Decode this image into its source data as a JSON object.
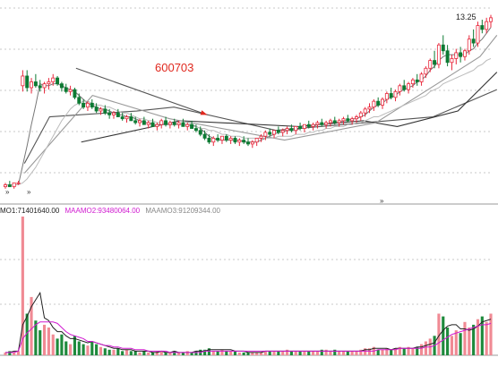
{
  "chart_data": {
    "type": "candlestick",
    "symbol": "600703",
    "max_price_label": "13.25",
    "price_markers": [
      "»",
      "»"
    ],
    "volume_legend": [
      {
        "text": "MO1:71401640.00",
        "color": "#222222"
      },
      {
        "text": "MAAMO2:93480064.00",
        "color": "#d01ad0"
      },
      {
        "text": "MAAMO3:91209344.00",
        "color": "#888888"
      }
    ],
    "ylim": [
      4.2,
      13.6
    ],
    "candles": [
      [
        4.4,
        4.6,
        4.3,
        4.5
      ],
      [
        4.5,
        4.7,
        4.4,
        4.4
      ],
      [
        4.4,
        4.6,
        4.3,
        4.6
      ],
      [
        4.6,
        4.7,
        4.5,
        4.6
      ],
      [
        9.6,
        10.4,
        9.3,
        10.1
      ],
      [
        10.1,
        10.4,
        9.3,
        9.5
      ],
      [
        9.5,
        10.0,
        9.2,
        9.8
      ],
      [
        9.8,
        10.2,
        9.5,
        9.6
      ],
      [
        9.6,
        9.9,
        9.3,
        9.5
      ],
      [
        9.5,
        9.8,
        9.2,
        9.7
      ],
      [
        9.7,
        10.0,
        9.4,
        9.8
      ],
      [
        9.8,
        10.2,
        9.6,
        10.0
      ],
      [
        10.0,
        10.1,
        9.6,
        9.7
      ],
      [
        9.7,
        9.8,
        9.3,
        9.5
      ],
      [
        9.5,
        9.7,
        9.2,
        9.3
      ],
      [
        9.3,
        9.6,
        9.1,
        9.4
      ],
      [
        9.4,
        9.5,
        8.9,
        9.0
      ],
      [
        9.0,
        9.2,
        8.6,
        8.7
      ],
      [
        8.7,
        8.9,
        8.4,
        8.5
      ],
      [
        8.5,
        8.8,
        8.3,
        8.7
      ],
      [
        8.7,
        8.9,
        8.4,
        8.5
      ],
      [
        8.5,
        8.7,
        8.2,
        8.3
      ],
      [
        8.3,
        8.5,
        8.1,
        8.4
      ],
      [
        8.4,
        8.6,
        8.1,
        8.2
      ],
      [
        8.2,
        8.4,
        7.9,
        8.1
      ],
      [
        8.1,
        8.3,
        7.9,
        8.2
      ],
      [
        8.2,
        8.4,
        8.0,
        8.0
      ],
      [
        8.0,
        8.2,
        7.8,
        7.9
      ],
      [
        7.9,
        8.1,
        7.7,
        8.0
      ],
      [
        8.0,
        8.2,
        7.8,
        7.8
      ],
      [
        7.8,
        8.0,
        7.6,
        7.7
      ],
      [
        7.7,
        7.9,
        7.5,
        7.8
      ],
      [
        7.8,
        8.0,
        7.6,
        7.6
      ],
      [
        7.6,
        7.8,
        7.4,
        7.7
      ],
      [
        7.7,
        7.9,
        7.5,
        7.5
      ],
      [
        7.5,
        7.7,
        7.3,
        7.6
      ],
      [
        7.6,
        7.9,
        7.4,
        7.8
      ],
      [
        7.8,
        8.0,
        7.5,
        7.6
      ],
      [
        7.6,
        7.8,
        7.4,
        7.7
      ],
      [
        7.7,
        7.9,
        7.5,
        7.6
      ],
      [
        7.6,
        7.8,
        7.4,
        7.7
      ],
      [
        7.7,
        7.9,
        7.5,
        7.5
      ],
      [
        7.5,
        7.7,
        7.3,
        7.6
      ],
      [
        7.6,
        7.8,
        7.4,
        7.4
      ],
      [
        7.4,
        7.6,
        7.2,
        7.3
      ],
      [
        7.3,
        7.5,
        7.0,
        7.1
      ],
      [
        7.1,
        7.3,
        6.8,
        6.9
      ],
      [
        6.9,
        7.1,
        6.6,
        6.7
      ],
      [
        6.7,
        7.0,
        6.5,
        6.9
      ],
      [
        6.9,
        7.1,
        6.7,
        6.8
      ],
      [
        6.8,
        7.0,
        6.6,
        7.0
      ],
      [
        7.0,
        7.1,
        6.7,
        6.8
      ],
      [
        6.8,
        7.0,
        6.6,
        6.9
      ],
      [
        6.9,
        7.0,
        6.6,
        6.7
      ],
      [
        6.7,
        6.9,
        6.5,
        6.8
      ],
      [
        6.8,
        7.0,
        6.6,
        6.7
      ],
      [
        6.7,
        6.9,
        6.5,
        6.6
      ],
      [
        6.6,
        6.8,
        6.4,
        6.7
      ],
      [
        6.7,
        6.9,
        6.5,
        6.9
      ],
      [
        6.9,
        7.1,
        6.7,
        7.0
      ],
      [
        7.0,
        7.3,
        6.8,
        7.2
      ],
      [
        7.2,
        7.4,
        7.0,
        7.1
      ],
      [
        7.1,
        7.3,
        6.9,
        7.3
      ],
      [
        7.3,
        7.5,
        7.1,
        7.2
      ],
      [
        7.2,
        7.4,
        7.0,
        7.3
      ],
      [
        7.3,
        7.5,
        7.1,
        7.4
      ],
      [
        7.4,
        7.6,
        7.2,
        7.3
      ],
      [
        7.3,
        7.5,
        7.1,
        7.5
      ],
      [
        7.5,
        7.7,
        7.3,
        7.4
      ],
      [
        7.4,
        7.6,
        7.2,
        7.6
      ],
      [
        7.6,
        7.8,
        7.4,
        7.5
      ],
      [
        7.5,
        7.7,
        7.3,
        7.6
      ],
      [
        7.6,
        7.8,
        7.4,
        7.7
      ],
      [
        7.7,
        7.9,
        7.5,
        7.6
      ],
      [
        7.6,
        7.8,
        7.4,
        7.7
      ],
      [
        7.7,
        7.9,
        7.5,
        7.8
      ],
      [
        7.8,
        8.0,
        7.6,
        7.7
      ],
      [
        7.7,
        7.9,
        7.5,
        7.8
      ],
      [
        7.8,
        8.0,
        7.6,
        7.9
      ],
      [
        7.9,
        8.1,
        7.7,
        7.8
      ],
      [
        7.8,
        8.0,
        7.6,
        7.9
      ],
      [
        7.9,
        8.1,
        7.7,
        8.0
      ],
      [
        8.0,
        8.3,
        7.8,
        8.2
      ],
      [
        8.2,
        8.5,
        8.0,
        8.4
      ],
      [
        8.4,
        8.7,
        8.2,
        8.5
      ],
      [
        8.5,
        8.9,
        8.3,
        8.8
      ],
      [
        8.8,
        9.0,
        8.5,
        8.6
      ],
      [
        8.6,
        9.0,
        8.4,
        8.9
      ],
      [
        8.9,
        9.3,
        8.7,
        9.2
      ],
      [
        9.2,
        9.5,
        8.9,
        9.0
      ],
      [
        9.0,
        9.4,
        8.8,
        9.3
      ],
      [
        9.3,
        9.7,
        9.1,
        9.6
      ],
      [
        9.6,
        9.9,
        9.3,
        9.4
      ],
      [
        9.4,
        9.8,
        9.2,
        9.7
      ],
      [
        9.7,
        10.0,
        9.5,
        9.9
      ],
      [
        9.9,
        10.2,
        9.6,
        9.8
      ],
      [
        9.8,
        10.3,
        9.6,
        10.2
      ],
      [
        10.2,
        10.6,
        10.0,
        10.5
      ],
      [
        10.5,
        11.0,
        10.3,
        10.9
      ],
      [
        10.9,
        11.4,
        10.5,
        10.7
      ],
      [
        10.7,
        11.8,
        10.5,
        11.7
      ],
      [
        11.7,
        12.2,
        11.2,
        11.4
      ],
      [
        11.4,
        11.7,
        10.6,
        10.8
      ],
      [
        10.8,
        11.2,
        10.4,
        11.0
      ],
      [
        11.0,
        11.5,
        10.7,
        11.3
      ],
      [
        11.3,
        11.6,
        10.8,
        11.1
      ],
      [
        11.1,
        11.5,
        10.9,
        11.4
      ],
      [
        11.4,
        12.2,
        11.2,
        12.0
      ],
      [
        12.0,
        12.5,
        11.6,
        11.8
      ],
      [
        11.8,
        12.9,
        11.6,
        12.7
      ],
      [
        12.7,
        13.0,
        12.3,
        12.5
      ],
      [
        12.5,
        13.1,
        12.3,
        12.9
      ],
      [
        12.9,
        13.25,
        12.6,
        13.1
      ]
    ],
    "ma_fast": [
      4.5,
      4.5,
      4.5,
      4.5,
      5.5,
      6.5,
      7.6,
      8.6,
      9.7,
      9.6,
      9.6,
      9.7,
      9.7,
      9.6,
      9.5,
      9.4,
      9.3,
      9.1,
      8.9,
      8.7,
      8.6,
      8.5,
      8.4,
      8.4,
      8.3,
      8.2,
      8.1,
      8.1,
      8.0,
      8.0,
      7.9,
      7.8,
      7.7,
      7.7,
      7.6,
      7.6,
      7.6,
      7.6,
      7.6,
      7.6,
      7.6,
      7.6,
      7.6,
      7.6,
      7.5,
      7.4,
      7.2,
      7.0,
      6.9,
      6.8,
      6.8,
      6.8,
      6.8,
      6.8,
      6.8,
      6.7,
      6.7,
      6.7,
      6.7,
      6.8,
      6.9,
      7.0,
      7.1,
      7.2,
      7.2,
      7.3,
      7.3,
      7.3,
      7.4,
      7.4,
      7.5,
      7.5,
      7.6,
      7.6,
      7.6,
      7.7,
      7.7,
      7.7,
      7.8,
      7.8,
      7.9,
      7.9,
      8.0,
      8.1,
      8.3,
      8.5,
      8.6,
      8.7,
      8.9,
      9.0,
      9.1,
      9.3,
      9.4,
      9.5,
      9.6,
      9.8,
      9.9,
      10.1,
      10.4,
      10.6,
      10.9,
      11.1,
      11.2,
      11.2,
      11.2,
      11.2,
      11.2,
      11.4,
      11.5,
      11.8,
      12.0,
      12.3,
      12.6
    ],
    "ma_slow": [
      4.5,
      4.5,
      4.5,
      4.5,
      4.6,
      4.8,
      5.1,
      5.4,
      5.8,
      6.2,
      6.6,
      7.0,
      7.4,
      7.8,
      8.1,
      8.4,
      8.6,
      8.7,
      8.8,
      8.8,
      8.7,
      8.6,
      8.6,
      8.5,
      8.5,
      8.4,
      8.3,
      8.2,
      8.2,
      8.1,
      8.0,
      7.9,
      7.9,
      7.8,
      7.8,
      7.7,
      7.7,
      7.7,
      7.6,
      7.6,
      7.6,
      7.6,
      7.6,
      7.5,
      7.5,
      7.4,
      7.4,
      7.3,
      7.3,
      7.2,
      7.1,
      7.1,
      7.0,
      7.0,
      7.0,
      6.9,
      6.9,
      6.9,
      6.9,
      6.9,
      6.9,
      6.9,
      6.9,
      7.0,
      7.0,
      7.0,
      7.0,
      7.1,
      7.1,
      7.1,
      7.2,
      7.2,
      7.3,
      7.3,
      7.4,
      7.4,
      7.5,
      7.5,
      7.5,
      7.6,
      7.6,
      7.7,
      7.7,
      7.8,
      7.9,
      8.0,
      8.0,
      8.1,
      8.2,
      8.3,
      8.4,
      8.5,
      8.6,
      8.7,
      8.8,
      8.9,
      9.0,
      9.1,
      9.3,
      9.4,
      9.5,
      9.7,
      9.8,
      9.9,
      10.0,
      10.1,
      10.2,
      10.3,
      10.4,
      10.6,
      10.7,
      10.9,
      11.0
    ],
    "trend_lines": [
      {
        "color": "#555555",
        "points": [
          [
            4.4,
            5.6
          ],
          [
            10.2,
            8.0
          ],
          [
            30.3,
            8.3
          ],
          [
            38.9,
            8.5
          ],
          [
            62.4,
            7.3
          ],
          [
            98.7,
            8.0
          ],
          [
            113.4,
            9.4
          ]
        ]
      },
      {
        "color": "#333333",
        "points": [
          [
            17.5,
            6.7
          ],
          [
            40.3,
            7.8
          ],
          [
            67.6,
            7.5
          ],
          [
            82.6,
            7.8
          ],
          [
            90.4,
            7.5
          ],
          [
            104.4,
            8.3
          ],
          [
            113.4,
            10.3
          ]
        ]
      },
      {
        "color": "#999999",
        "points": [
          [
            4.4,
            5.1
          ],
          [
            20.1,
            9.1
          ],
          [
            37.9,
            7.9
          ],
          [
            64.4,
            6.8
          ],
          [
            85.5,
            7.7
          ],
          [
            109.5,
            11.1
          ],
          [
            113.4,
            12.2
          ]
        ]
      }
    ],
    "arrow": {
      "from": [
        16.3,
        10.5
      ],
      "to": [
        46.6,
        8.1
      ],
      "color": "#555555"
    },
    "volume": {
      "ylim": [
        0,
        100
      ],
      "bars": [
        2,
        3,
        2,
        3,
        100,
        30,
        42,
        25,
        18,
        22,
        20,
        15,
        12,
        15,
        10,
        8,
        14,
        10,
        8,
        7,
        10,
        8,
        6,
        5,
        4,
        4,
        5,
        3,
        4,
        3,
        3,
        2,
        3,
        2,
        2,
        3,
        3,
        2,
        2,
        3,
        2,
        2,
        3,
        2,
        3,
        4,
        4,
        5,
        3,
        3,
        4,
        3,
        3,
        3,
        2,
        2,
        2,
        2,
        2,
        2,
        3,
        3,
        3,
        3,
        3,
        4,
        3,
        3,
        3,
        3,
        3,
        3,
        3,
        4,
        4,
        3,
        4,
        3,
        3,
        3,
        3,
        3,
        4,
        5,
        5,
        6,
        4,
        4,
        5,
        4,
        5,
        6,
        5,
        6,
        5,
        6,
        8,
        10,
        12,
        14,
        30,
        28,
        20,
        14,
        18,
        16,
        24,
        20,
        22,
        26,
        28,
        24,
        30
      ],
      "ma5": [
        2,
        2,
        3,
        3,
        22,
        28,
        35,
        40,
        45,
        27,
        25,
        20,
        17,
        17,
        14,
        12,
        12,
        11,
        10,
        9,
        10,
        9,
        8,
        7,
        6,
        5,
        5,
        4,
        4,
        4,
        3,
        3,
        3,
        3,
        2,
        2,
        3,
        2,
        2,
        3,
        2,
        2,
        2,
        2,
        3,
        3,
        3,
        4,
        4,
        4,
        4,
        4,
        4,
        3,
        3,
        3,
        2,
        2,
        2,
        2,
        3,
        3,
        3,
        3,
        3,
        3,
        3,
        3,
        3,
        3,
        3,
        3,
        3,
        3,
        3,
        3,
        3,
        3,
        3,
        3,
        3,
        3,
        3,
        4,
        4,
        5,
        5,
        5,
        5,
        4,
        5,
        5,
        5,
        5,
        5,
        6,
        6,
        7,
        8,
        9,
        14,
        18,
        21,
        22,
        22,
        19,
        19,
        18,
        19,
        21,
        24,
        25,
        26
      ],
      "ma10": [
        2,
        2,
        2,
        3,
        12,
        16,
        19,
        22,
        24,
        24,
        24,
        24,
        23,
        20,
        17,
        15,
        14,
        13,
        12,
        10,
        10,
        9,
        8,
        7,
        7,
        6,
        6,
        5,
        5,
        5,
        4,
        4,
        4,
        3,
        3,
        3,
        3,
        3,
        2,
        2,
        2,
        2,
        2,
        2,
        2,
        2,
        3,
        3,
        3,
        3,
        3,
        3,
        3,
        3,
        3,
        3,
        3,
        3,
        3,
        3,
        3,
        3,
        3,
        3,
        3,
        3,
        3,
        3,
        3,
        3,
        3,
        3,
        3,
        3,
        3,
        3,
        3,
        3,
        3,
        3,
        3,
        3,
        3,
        3,
        3,
        3,
        4,
        4,
        4,
        4,
        4,
        5,
        5,
        5,
        5,
        5,
        5,
        6,
        6,
        7,
        9,
        11,
        13,
        15,
        16,
        17,
        18,
        19,
        20,
        21,
        22,
        22,
        23
      ]
    }
  }
}
